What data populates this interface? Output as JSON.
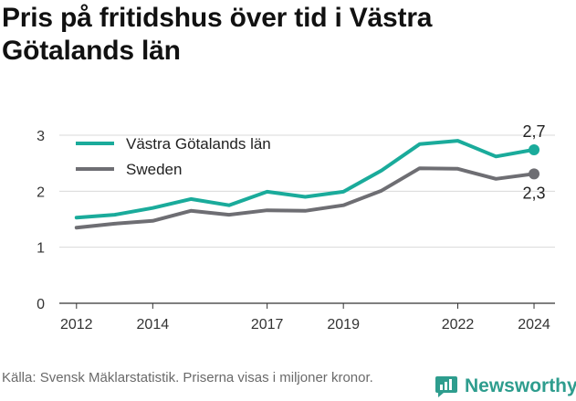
{
  "title": "Pris på fritidshus över tid i Västra Götalands län",
  "footer": {
    "source_note": "Källa: Svensk Mäklarstatistik. Priserna visas i miljoner kronor.",
    "brand": "Newsworthy"
  },
  "colors": {
    "series_1": "#1aab9b",
    "series_2": "#6e6e73",
    "grid": "#d9d9d9",
    "axis": "#333333",
    "brand": "#2e9d8e"
  },
  "chart_data": {
    "type": "line",
    "title": "Pris på fritidshus över tid i Västra Götalands län",
    "xlabel": "",
    "ylabel": "",
    "ylim": [
      0,
      3
    ],
    "yticks": [
      0,
      1,
      2,
      3
    ],
    "xticks": [
      2012,
      2014,
      2017,
      2019,
      2022,
      2024
    ],
    "grid": true,
    "legend_position": "top-left",
    "series": [
      {
        "name": "Västra Götalands län",
        "x": [
          2012,
          2013,
          2014,
          2015,
          2016,
          2017,
          2018,
          2019,
          2020,
          2021,
          2022,
          2023,
          2024
        ],
        "values": [
          1.53,
          1.58,
          1.7,
          1.86,
          1.75,
          1.99,
          1.9,
          1.99,
          2.37,
          2.84,
          2.9,
          2.62,
          2.74
        ]
      },
      {
        "name": "Sweden",
        "x": [
          2012,
          2013,
          2014,
          2015,
          2016,
          2017,
          2018,
          2019,
          2020,
          2021,
          2022,
          2023,
          2024
        ],
        "values": [
          1.35,
          1.42,
          1.47,
          1.65,
          1.58,
          1.66,
          1.65,
          1.75,
          2.01,
          2.41,
          2.4,
          2.22,
          2.31
        ]
      }
    ],
    "end_labels": [
      "2,7",
      "2,3"
    ]
  }
}
